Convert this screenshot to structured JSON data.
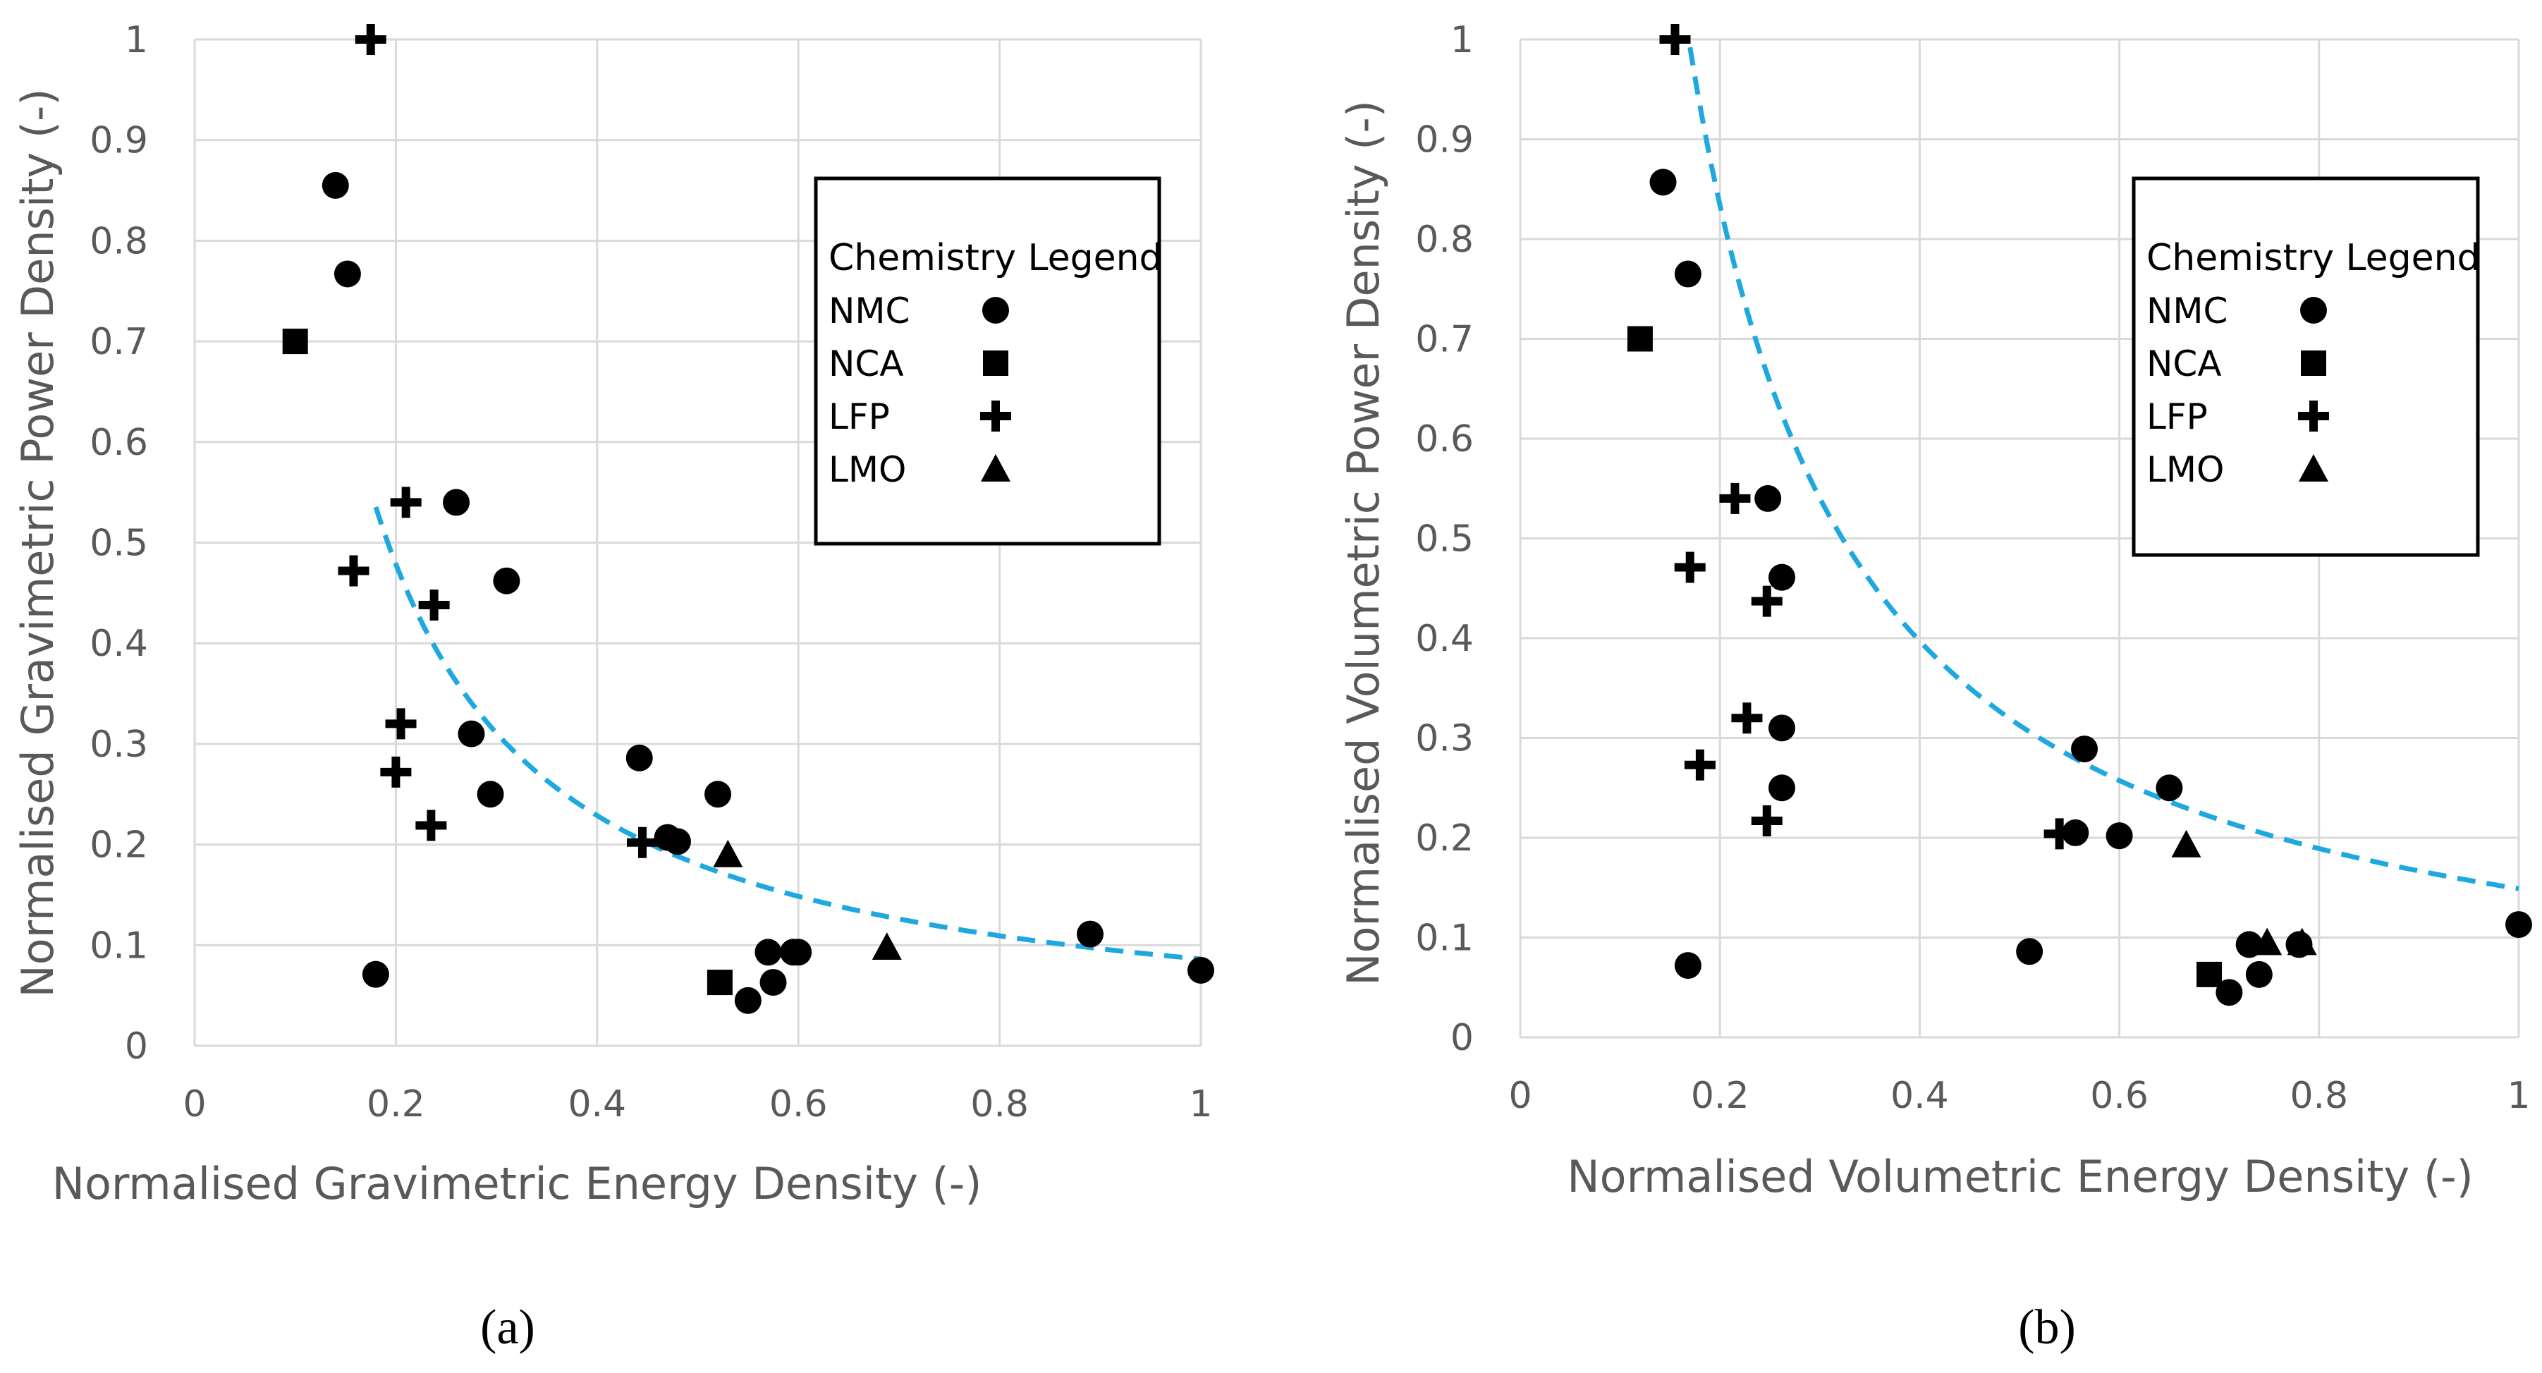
{
  "chart_data": [
    {
      "type": "scatter",
      "panel": "a",
      "caption": "(a)",
      "xlabel": "Normalised Gravimetric Energy Density (-)",
      "ylabel": "Normalised Gravimetric Power Density (-)",
      "xlim": [
        0,
        1
      ],
      "ylim": [
        0,
        1
      ],
      "xticks": [
        "0",
        "0.2",
        "0.4",
        "0.6",
        "0.8",
        "1"
      ],
      "yticks": [
        "0",
        "0.1",
        "0.2",
        "0.3",
        "0.4",
        "0.5",
        "0.6",
        "0.7",
        "0.8",
        "0.9",
        "1"
      ],
      "grid": true,
      "legend": {
        "title": "Chemistry Legend",
        "placement": "right",
        "entries": [
          {
            "label": "NMC",
            "marker": "circle"
          },
          {
            "label": "NCA",
            "marker": "square"
          },
          {
            "label": "LFP",
            "marker": "plus"
          },
          {
            "label": "LMO",
            "marker": "triangle"
          }
        ]
      },
      "series": [
        {
          "name": "NMC",
          "marker": "circle",
          "points": [
            [
              0.14,
              0.855
            ],
            [
              0.152,
              0.767
            ],
            [
              0.26,
              0.54
            ],
            [
              0.31,
              0.462
            ],
            [
              0.275,
              0.31
            ],
            [
              0.294,
              0.25
            ],
            [
              0.442,
              0.286
            ],
            [
              0.47,
              0.207
            ],
            [
              0.48,
              0.203
            ],
            [
              0.52,
              0.25
            ],
            [
              0.57,
              0.093
            ],
            [
              0.575,
              0.063
            ],
            [
              0.595,
              0.093
            ],
            [
              0.6,
              0.093
            ],
            [
              0.55,
              0.045
            ],
            [
              0.18,
              0.071
            ],
            [
              0.89,
              0.111
            ],
            [
              1.0,
              0.075
            ]
          ]
        },
        {
          "name": "NCA",
          "marker": "square",
          "points": [
            [
              0.1,
              0.7
            ],
            [
              0.522,
              0.063
            ]
          ]
        },
        {
          "name": "LFP",
          "marker": "plus",
          "points": [
            [
              0.175,
              1.0
            ],
            [
              0.21,
              0.54
            ],
            [
              0.158,
              0.472
            ],
            [
              0.238,
              0.438
            ],
            [
              0.205,
              0.32
            ],
            [
              0.2,
              0.272
            ],
            [
              0.235,
              0.219
            ],
            [
              0.445,
              0.202
            ]
          ]
        },
        {
          "name": "LMO",
          "marker": "triangle",
          "points": [
            [
              0.53,
              0.19
            ],
            [
              0.688,
              0.098
            ]
          ]
        },
        {
          "name": "fit",
          "style": "dashed",
          "color": "#1fa8e0",
          "function": "power",
          "a": 0.0862,
          "b": -1.065,
          "xrange": [
            0.18,
            1.0
          ]
        }
      ]
    },
    {
      "type": "scatter",
      "panel": "b",
      "caption": "(b)",
      "xlabel": "Normalised Volumetric Energy Density (-)",
      "ylabel": "Normalised Volumetric Power Density (-)",
      "xlim": [
        0,
        1
      ],
      "ylim": [
        0,
        1
      ],
      "xticks": [
        "0",
        "0.2",
        "0.4",
        "0.6",
        "0.8",
        "1"
      ],
      "yticks": [
        "0",
        "0.1",
        "0.2",
        "0.3",
        "0.4",
        "0.5",
        "0.6",
        "0.7",
        "0.8",
        "0.9",
        "1"
      ],
      "grid": true,
      "legend": {
        "title": "Chemistry Legend",
        "placement": "right",
        "entries": [
          {
            "label": "NMC",
            "marker": "circle"
          },
          {
            "label": "NCA",
            "marker": "square"
          },
          {
            "label": "LFP",
            "marker": "plus"
          },
          {
            "label": "LMO",
            "marker": "triangle"
          }
        ]
      },
      "series": [
        {
          "name": "NMC",
          "marker": "circle",
          "points": [
            [
              0.143,
              0.857
            ],
            [
              0.168,
              0.765
            ],
            [
              0.248,
              0.54
            ],
            [
              0.262,
              0.461
            ],
            [
              0.262,
              0.31
            ],
            [
              0.262,
              0.25
            ],
            [
              0.565,
              0.289
            ],
            [
              0.556,
              0.205
            ],
            [
              0.6,
              0.202
            ],
            [
              0.65,
              0.25
            ],
            [
              0.51,
              0.086
            ],
            [
              0.73,
              0.093
            ],
            [
              0.74,
              0.063
            ],
            [
              0.78,
              0.093
            ],
            [
              0.71,
              0.045
            ],
            [
              0.168,
              0.072
            ],
            [
              1.0,
              0.113
            ]
          ]
        },
        {
          "name": "NCA",
          "marker": "square",
          "points": [
            [
              0.12,
              0.7
            ],
            [
              0.69,
              0.063
            ]
          ]
        },
        {
          "name": "LFP",
          "marker": "plus",
          "points": [
            [
              0.155,
              1.0
            ],
            [
              0.215,
              0.54
            ],
            [
              0.17,
              0.471
            ],
            [
              0.247,
              0.437
            ],
            [
              0.227,
              0.32
            ],
            [
              0.18,
              0.273
            ],
            [
              0.247,
              0.217
            ],
            [
              0.54,
              0.204
            ]
          ]
        },
        {
          "name": "LMO",
          "marker": "triangle",
          "points": [
            [
              0.667,
              0.193
            ],
            [
              0.748,
              0.095
            ],
            [
              0.783,
              0.095
            ]
          ]
        },
        {
          "name": "fit",
          "style": "dashed",
          "color": "#1fa8e0",
          "function": "power",
          "a": 0.149,
          "b": -1.07,
          "xrange": [
            0.17,
            1.0
          ]
        }
      ]
    }
  ]
}
